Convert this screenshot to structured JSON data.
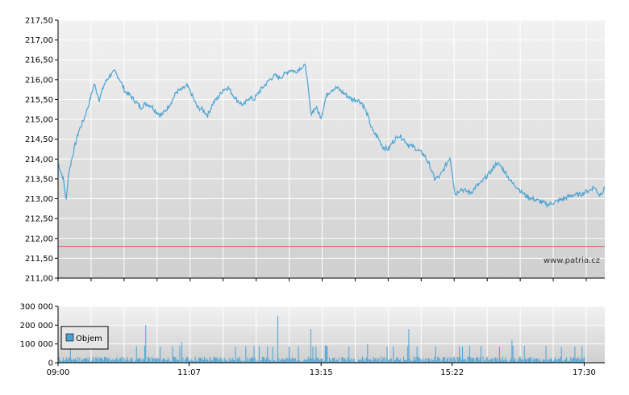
{
  "chart_data": [
    {
      "type": "line",
      "title": "",
      "xlabel": "",
      "ylabel": "",
      "ylim": [
        211.0,
        217.5
      ],
      "y_ticks": [
        "217,50",
        "217,00",
        "216,50",
        "216,00",
        "215,50",
        "215,00",
        "214,50",
        "214,00",
        "213,50",
        "213,00",
        "212,50",
        "212,00",
        "211,50",
        "211,00"
      ],
      "y_tick_values": [
        217.5,
        217.0,
        216.5,
        216.0,
        215.5,
        215.0,
        214.5,
        214.0,
        213.5,
        213.0,
        212.5,
        212.0,
        211.5,
        211.0
      ],
      "reference_line": {
        "value": 211.8,
        "color": "#e05a4a"
      },
      "line_color": "#4aa3d3",
      "grid": true,
      "watermark": "www.patria.cz",
      "x_minutes": [
        0,
        5,
        8,
        10,
        15,
        20,
        25,
        30,
        35,
        40,
        45,
        50,
        55,
        60,
        65,
        70,
        75,
        80,
        85,
        90,
        95,
        100,
        105,
        110,
        115,
        120,
        125,
        130,
        135,
        140,
        145,
        150,
        155,
        160,
        165,
        170,
        175,
        180,
        185,
        190,
        195,
        200,
        205,
        210,
        215,
        220,
        225,
        230,
        235,
        240,
        245,
        250,
        255,
        260,
        265,
        270,
        275,
        280,
        285,
        290,
        295,
        300,
        305,
        310,
        315,
        320,
        325,
        330,
        335,
        340,
        345,
        350,
        355,
        360,
        365,
        370,
        375,
        380,
        385,
        390,
        395,
        400,
        405,
        410,
        415,
        420,
        425,
        430,
        435,
        440,
        445,
        450,
        455,
        460,
        465,
        470,
        475,
        480,
        485,
        490,
        495,
        500,
        505,
        510,
        513,
        515,
        517,
        520,
        522,
        525,
        530
      ],
      "values": [
        213.9,
        213.5,
        212.95,
        213.6,
        214.2,
        214.7,
        215.0,
        215.4,
        215.9,
        215.5,
        215.9,
        216.1,
        216.2,
        216.0,
        215.7,
        215.6,
        215.45,
        215.3,
        215.4,
        215.35,
        215.2,
        215.1,
        215.25,
        215.45,
        215.7,
        215.75,
        215.85,
        215.6,
        215.3,
        215.25,
        215.1,
        215.4,
        215.55,
        215.75,
        215.8,
        215.6,
        215.45,
        215.35,
        215.55,
        215.5,
        215.7,
        215.85,
        216.0,
        216.1,
        216.05,
        216.15,
        216.25,
        216.2,
        216.3,
        216.35,
        215.15,
        215.3,
        215.05,
        215.6,
        215.75,
        215.8,
        215.7,
        215.6,
        215.5,
        215.5,
        215.4,
        215.1,
        214.7,
        214.55,
        214.3,
        214.25,
        214.45,
        214.6,
        214.5,
        214.35,
        214.3,
        214.2,
        214.1,
        213.85,
        213.5,
        213.55,
        213.8,
        214.05,
        213.1,
        213.25,
        213.2,
        213.15,
        213.3,
        213.4,
        213.55,
        213.7,
        213.9,
        213.8,
        213.6,
        213.4,
        213.3,
        213.15,
        213.05,
        213.0,
        212.95,
        212.9,
        212.85,
        212.9,
        212.95,
        213.0,
        213.05,
        213.1,
        213.1,
        213.15,
        213.2,
        213.2,
        213.25,
        213.3,
        213.2,
        213.1,
        213.25
      ]
    },
    {
      "type": "bar",
      "title": "",
      "ylim": [
        0,
        300000
      ],
      "y_ticks": [
        "300 000",
        "200 000",
        "100 000",
        "0"
      ],
      "y_tick_values": [
        300000,
        200000,
        100000,
        0
      ],
      "x_ticks": [
        "09:00",
        "11:07",
        "13:15",
        "15:22",
        "17:30"
      ],
      "x_tick_minutes": [
        0,
        127,
        255,
        382,
        510
      ],
      "legend": "Objem",
      "bar_color": "#4aa3d3",
      "spikes": [
        {
          "minute": 85,
          "value": 200000
        },
        {
          "minute": 213,
          "value": 250000
        },
        {
          "minute": 245,
          "value": 180000
        },
        {
          "minute": 340,
          "value": 180000
        },
        {
          "minute": 120,
          "value": 110000
        },
        {
          "minute": 300,
          "value": 100000
        },
        {
          "minute": 440,
          "value": 120000
        }
      ],
      "baseline_volume": 25000
    }
  ]
}
